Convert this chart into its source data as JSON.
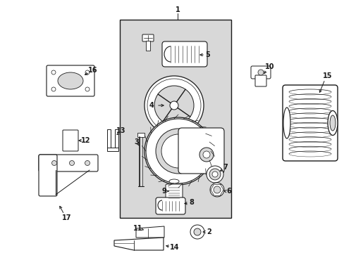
{
  "bg_color": "#ffffff",
  "line_color": "#1a1a1a",
  "gray_fill": "#d8d8d8",
  "fig_width": 4.89,
  "fig_height": 3.6,
  "dpi": 100
}
